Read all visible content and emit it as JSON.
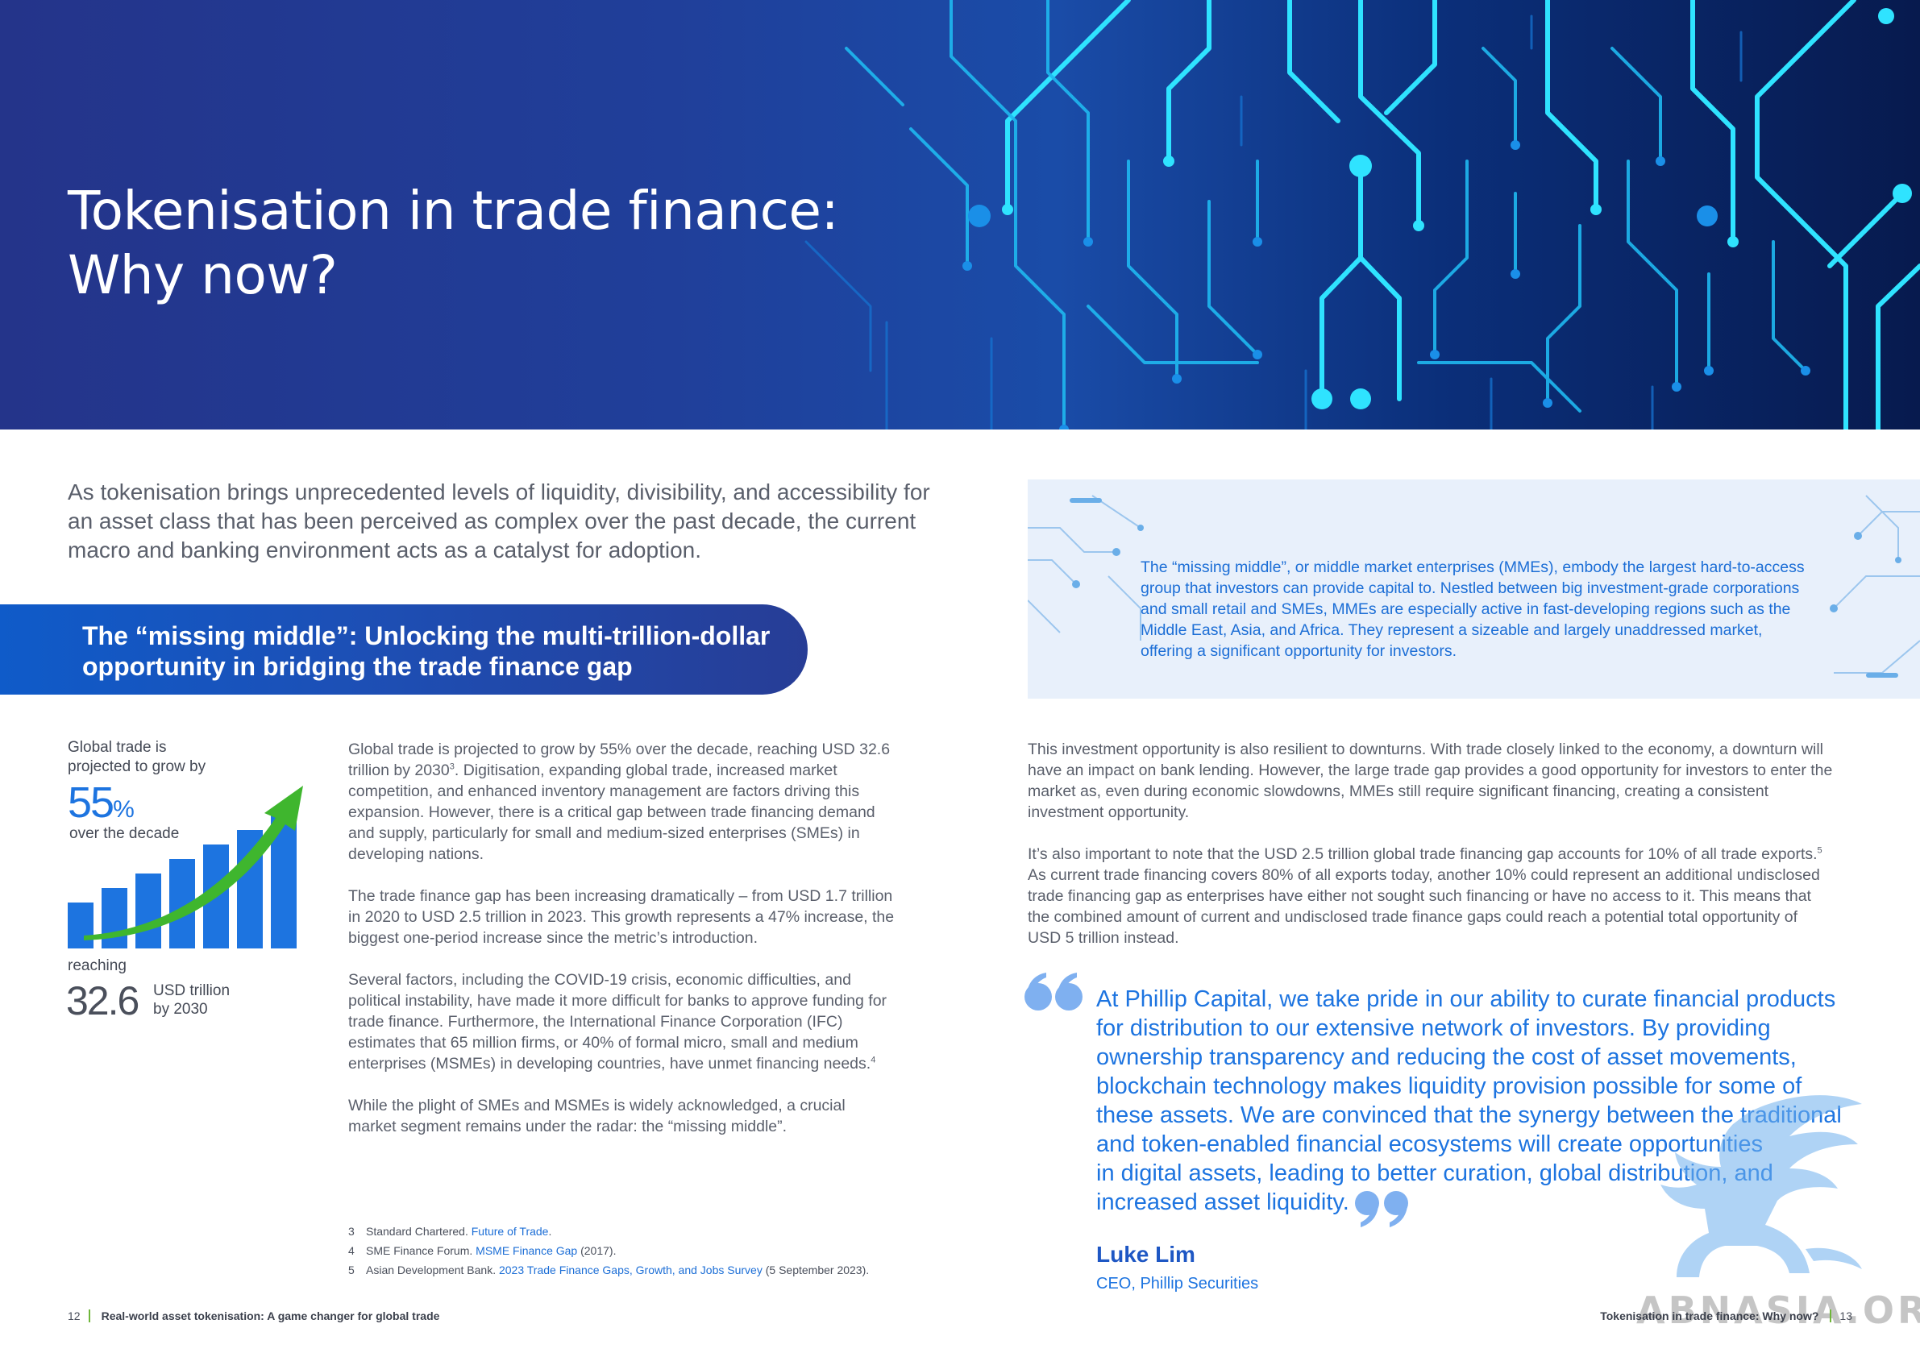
{
  "banner": {
    "title_line1": "Tokenisation in trade finance:",
    "title_line2": "Why now?"
  },
  "intro": {
    "text": "As tokenisation brings unprecedented levels of liquidity, divisibility, and accessibility for an asset class that has been perceived as complex over the past decade, the current macro and banking environment acts as a catalyst for adoption."
  },
  "section": {
    "title_line1": "The “missing middle”: Unlocking the multi-trillion-dollar",
    "title_line2": "opportunity in bridging the trade finance gap"
  },
  "stats": {
    "intro_line1": "Global trade is",
    "intro_line2": "projected to grow by",
    "growth_value": "55",
    "growth_unit": "%",
    "growth_caption": "over the decade",
    "reaching_label": "reaching",
    "trade_value": "32.6",
    "trade_unit_line1": "USD trillion",
    "trade_unit_line2": "by 2030",
    "colors": {
      "bars": "#1d74e0",
      "arrow": "#3fb62e"
    }
  },
  "left_column": {
    "p1": "Global trade is projected to grow by 55% over the decade, reaching USD 32.6 trillion by 2030",
    "p1_sup": "3",
    "p1_rest": ". Digitisation, expanding global trade, increased market competition, and enhanced inventory management are factors driving this expansion. However, there is a critical gap between trade financing demand and supply, particularly for small and medium-sized enterprises (SMEs) in developing nations.",
    "p2": "The trade finance gap has been increasing dramatically – from USD 1.7 trillion in 2020 to USD 2.5 trillion in 2023. This growth represents a 47% increase, the biggest one-period increase since the metric’s introduction.",
    "p3": "Several factors, including the COVID-19 crisis, economic difficulties, and political instability, have made it more difficult for banks to approve funding for trade finance. Furthermore, the International Finance Corporation (IFC) estimates that 65 million firms, or 40% of formal micro, small and medium enterprises (MSMEs) in developing countries, have unmet financing needs.",
    "p3_sup": "4",
    "p4": "While the plight of SMEs and MSMEs is widely acknowledged, a crucial market segment remains under the radar: the “missing middle”."
  },
  "callout": {
    "text": "The “missing middle”, or middle market enterprises (MMEs), embody the largest hard-to-access group that investors can provide capital to. Nestled between big investment-grade corporations and small retail and SMEs, MMEs are especially active in fast-developing regions such as the Middle East, Asia, and Africa. They represent a sizeable and largely unaddressed market, offering a significant opportunity for investors."
  },
  "right_column": {
    "p1": "This investment opportunity is also resilient to downturns. With trade closely linked to the economy, a downturn will have an impact on bank lending. However, the large trade gap provides a good opportunity for investors to enter the market as, even during economic slowdowns, MMEs still require significant financing, creating a consistent investment opportunity.",
    "p2": "It’s also important to note that the USD 2.5 trillion global trade financing gap accounts for 10% of all trade exports.",
    "p2_sup": "5",
    "p2_rest": " As current trade financing covers 80% of all exports today, another 10% could represent an additional undisclosed trade financing gap as enterprises have either not sought such financing or have no access to it. This means that the combined amount of current and undisclosed trade finance gaps could reach a potential total opportunity of USD 5 trillion instead."
  },
  "quote": {
    "lines": [
      "At Phillip Capital, we take pride in our ability to curate financial products",
      "for distribution to our extensive network of investors. By providing",
      "ownership transparency and reducing the cost of asset movements,",
      "blockchain technology makes liquidity provision possible for some of",
      "these assets. We are convinced that the synergy between the traditional",
      "and token-enabled financial ecosystems will create opportunities",
      "in digital assets, leading to better curation, global distribution, and",
      "increased asset liquidity."
    ],
    "name": "Luke Lim",
    "role": "CEO, Phillip Securities"
  },
  "footnotes": [
    {
      "num": "3",
      "prefix": "Standard Chartered. ",
      "link": "Future of Trade",
      "suffix": "."
    },
    {
      "num": "4",
      "prefix": "SME Finance Forum. ",
      "link": "MSME Finance Gap",
      "suffix": " (2017)."
    },
    {
      "num": "5",
      "prefix": "Asian Development Bank. ",
      "link": "2023 Trade Finance Gaps, Growth, and Jobs Survey",
      "suffix": " (5 September 2023)."
    }
  ],
  "footer": {
    "left_page": "12",
    "left_title": "Real-world asset tokenisation: A game changer for global trade",
    "right_title": "Tokenisation in trade finance: Why now?",
    "right_page": "13"
  },
  "watermark": "ABNASIA.ORG"
}
